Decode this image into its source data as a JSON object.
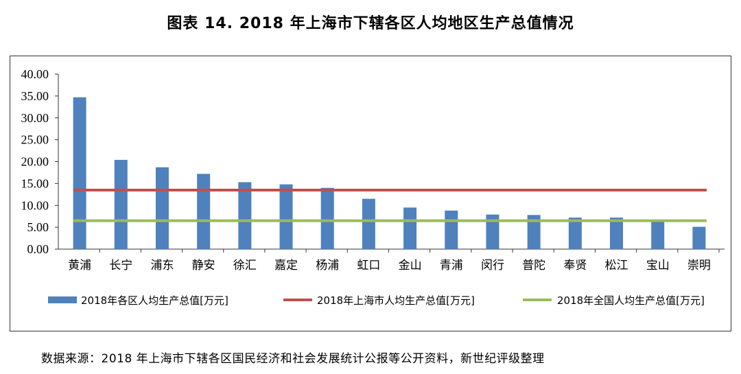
{
  "title": "图表 14. 2018 年上海市下辖各区人均地区生产总值情况",
  "source": "数据来源：2018 年上海市下辖各区国民经济和社会发展统计公报等公开资料，新世纪评级整理",
  "chart_data": {
    "type": "bar",
    "categories": [
      "黄浦",
      "长宁",
      "浦东",
      "静安",
      "徐汇",
      "嘉定",
      "杨浦",
      "虹口",
      "金山",
      "青浦",
      "闵行",
      "普陀",
      "奉贤",
      "松江",
      "宝山",
      "崇明"
    ],
    "series": [
      {
        "name": "2018年各区人均生产总值[万元]",
        "kind": "bar",
        "color": "#4F81BD",
        "values": [
          34.7,
          20.4,
          18.7,
          17.2,
          15.3,
          14.8,
          14.0,
          11.5,
          9.5,
          8.8,
          7.9,
          7.8,
          7.2,
          7.2,
          6.3,
          5.1
        ]
      },
      {
        "name": "2018年上海市人均生产总值[万元]",
        "kind": "line",
        "color": "#C0504D",
        "value": 13.5
      },
      {
        "name": "2018年全国人均生产总值[万元]",
        "kind": "line",
        "color": "#9BBB59",
        "value": 6.5
      }
    ],
    "ylim": [
      0,
      40
    ],
    "yticks": [
      "0.00",
      "5.00",
      "10.00",
      "15.00",
      "20.00",
      "25.00",
      "30.00",
      "35.00",
      "40.00"
    ],
    "legend_position": "bottom",
    "grid": false
  }
}
